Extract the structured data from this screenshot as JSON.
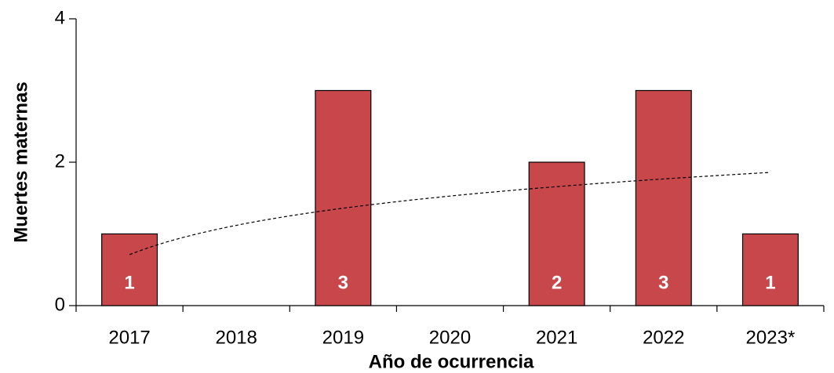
{
  "chart_data": {
    "type": "bar",
    "x_label": "Año de ocurrencia",
    "y_label": "Muertes maternas",
    "categories": [
      "2017",
      "2018",
      "2019",
      "2020",
      "2021",
      "2022",
      "2023*"
    ],
    "values": [
      1,
      0,
      3,
      0,
      2,
      3,
      1
    ],
    "color": "#c8474b",
    "ylim": [
      0,
      4
    ],
    "yticks": [
      0,
      2,
      4
    ],
    "trendline": "logarithmic",
    "data_labels": true
  }
}
